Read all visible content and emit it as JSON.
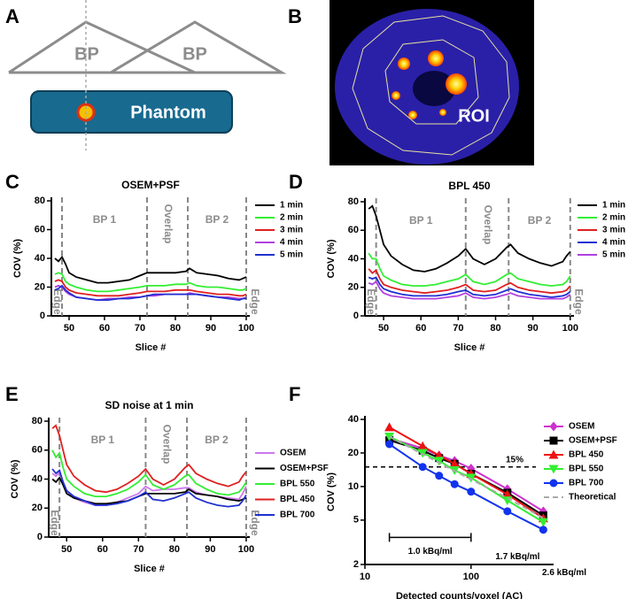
{
  "diagram_a": {
    "label": "A",
    "beds": [
      "BP",
      "BP"
    ],
    "phantom": "Phantom"
  },
  "image_b": {
    "label": "B",
    "roi_label": "ROI"
  },
  "chart_data": [
    {
      "type": "line",
      "panel": "C",
      "title": "OSEM+PSF",
      "xlabel": "Slice #",
      "ylabel": "COV (%)",
      "x": [
        46,
        47,
        48,
        49,
        50,
        52,
        55,
        58,
        61,
        64,
        67,
        70,
        72,
        74,
        77,
        80,
        83,
        84,
        86,
        89,
        92,
        95,
        98,
        99,
        100
      ],
      "series": [
        {
          "name": "1 min",
          "color": "#000000",
          "values": [
            40,
            38,
            41,
            36,
            30,
            27,
            25,
            23,
            23,
            24,
            25,
            28,
            30,
            30,
            30,
            30,
            31,
            33,
            30,
            29,
            28,
            26,
            25,
            26,
            27
          ]
        },
        {
          "name": "2 min",
          "color": "#33ee33",
          "values": [
            29,
            30,
            29,
            24,
            22,
            20,
            18,
            17,
            17,
            18,
            19,
            20,
            21,
            21,
            21,
            22,
            22,
            23,
            21,
            20,
            20,
            19,
            18,
            18,
            19
          ]
        },
        {
          "name": "3 min",
          "color": "#e02020",
          "values": [
            24,
            25,
            24,
            20,
            18,
            16,
            15,
            14,
            14,
            14,
            15,
            16,
            17,
            17,
            17,
            18,
            18,
            18,
            17,
            16,
            15,
            15,
            14,
            14,
            15
          ]
        },
        {
          "name": "4 min",
          "color": "#b040e0",
          "values": [
            20,
            21,
            20,
            17,
            15,
            13,
            12,
            11,
            12,
            12,
            13,
            13,
            14,
            14,
            15,
            15,
            15,
            16,
            15,
            14,
            13,
            13,
            12,
            12,
            13
          ]
        },
        {
          "name": "5 min",
          "color": "#2030d0",
          "values": [
            18,
            19,
            21,
            18,
            16,
            13,
            12,
            11,
            11,
            12,
            12,
            13,
            14,
            15,
            15,
            15,
            15,
            15,
            15,
            14,
            13,
            12,
            11,
            12,
            12
          ]
        }
      ],
      "xlim": [
        45,
        101
      ],
      "ylim": [
        0,
        80
      ],
      "xticks": [
        50,
        60,
        70,
        80,
        90,
        100
      ],
      "yticks": [
        0,
        20,
        40,
        60,
        80
      ],
      "reference_lines": [
        48,
        72,
        83.5,
        100
      ],
      "annotations": [
        "BP 1",
        "Overlap",
        "BP 2",
        "Edge",
        "Edge"
      ]
    },
    {
      "type": "line",
      "panel": "D",
      "title": "BPL 450",
      "xlabel": "Slice #",
      "ylabel": "COV (%)",
      "x": [
        46,
        47,
        48,
        49,
        50,
        52,
        55,
        58,
        61,
        64,
        67,
        70,
        72,
        74,
        77,
        80,
        83,
        84,
        86,
        89,
        92,
        95,
        98,
        99,
        100
      ],
      "series": [
        {
          "name": "1 min",
          "color": "#000000",
          "values": [
            75,
            77,
            70,
            60,
            50,
            42,
            36,
            32,
            31,
            33,
            37,
            42,
            47,
            40,
            36,
            40,
            48,
            50,
            44,
            40,
            37,
            35,
            38,
            42,
            45
          ]
        },
        {
          "name": "2 min",
          "color": "#33ee33",
          "values": [
            44,
            40,
            40,
            33,
            28,
            25,
            22,
            21,
            21,
            22,
            24,
            26,
            29,
            24,
            22,
            24,
            29,
            30,
            26,
            24,
            22,
            21,
            22,
            24,
            28
          ]
        },
        {
          "name": "3 min",
          "color": "#e02020",
          "values": [
            33,
            30,
            32,
            26,
            22,
            20,
            18,
            17,
            16,
            17,
            18,
            20,
            22,
            18,
            17,
            18,
            22,
            23,
            20,
            18,
            17,
            16,
            17,
            18,
            21
          ]
        },
        {
          "name": "4 min",
          "color": "#2030d0",
          "values": [
            27,
            26,
            27,
            22,
            19,
            17,
            15,
            14,
            14,
            14,
            15,
            17,
            18,
            15,
            14,
            15,
            18,
            19,
            17,
            15,
            14,
            13,
            14,
            15,
            17
          ]
        },
        {
          "name": "5 min",
          "color": "#b040e0",
          "values": [
            23,
            22,
            24,
            19,
            16,
            14,
            13,
            12,
            12,
            12,
            13,
            14,
            16,
            13,
            12,
            13,
            15,
            16,
            14,
            13,
            12,
            12,
            12,
            13,
            15
          ]
        }
      ],
      "xlim": [
        45,
        101
      ],
      "ylim": [
        0,
        80
      ],
      "xticks": [
        50,
        60,
        70,
        80,
        90,
        100
      ],
      "yticks": [
        0,
        20,
        40,
        60,
        80
      ],
      "reference_lines": [
        48,
        72,
        83.5,
        100
      ],
      "annotations": [
        "BP 1",
        "Overlap",
        "BP 2",
        "Edge",
        "Edge"
      ]
    },
    {
      "type": "line",
      "panel": "E",
      "title": "SD noise at 1 min",
      "xlabel": "Slice #",
      "ylabel": "COV (%)",
      "x": [
        46,
        47,
        48,
        49,
        50,
        52,
        55,
        58,
        61,
        64,
        67,
        70,
        72,
        74,
        77,
        80,
        83,
        84,
        86,
        89,
        92,
        95,
        98,
        99,
        100
      ],
      "series": [
        {
          "name": "OSEM",
          "color": "#cc77ee",
          "values": [
            44,
            42,
            45,
            38,
            32,
            27,
            24,
            22,
            22,
            24,
            27,
            30,
            35,
            32,
            33,
            33,
            34,
            34,
            31,
            29,
            28,
            27,
            26,
            30,
            35
          ]
        },
        {
          "name": "OSEM+PSF",
          "color": "#000000",
          "values": [
            40,
            38,
            41,
            36,
            30,
            27,
            25,
            23,
            23,
            24,
            25,
            28,
            30,
            30,
            30,
            30,
            31,
            33,
            30,
            29,
            28,
            26,
            25,
            26,
            27
          ]
        },
        {
          "name": "BPL 550",
          "color": "#33ee33",
          "values": [
            60,
            55,
            58,
            48,
            40,
            35,
            30,
            28,
            28,
            30,
            33,
            38,
            43,
            36,
            33,
            36,
            42,
            43,
            37,
            33,
            30,
            29,
            31,
            34,
            38
          ]
        },
        {
          "name": "BPL 450",
          "color": "#e02020",
          "values": [
            75,
            77,
            70,
            60,
            50,
            42,
            36,
            32,
            31,
            33,
            37,
            42,
            47,
            40,
            36,
            40,
            48,
            50,
            44,
            40,
            37,
            35,
            38,
            42,
            45
          ]
        },
        {
          "name": "BPL 700",
          "color": "#2030d0",
          "values": [
            47,
            44,
            46,
            38,
            32,
            28,
            25,
            22,
            22,
            23,
            25,
            28,
            31,
            26,
            25,
            27,
            30,
            31,
            27,
            24,
            22,
            21,
            22,
            25,
            29
          ]
        }
      ],
      "xlim": [
        45,
        101
      ],
      "ylim": [
        0,
        80
      ],
      "xticks": [
        50,
        60,
        70,
        80,
        90,
        100
      ],
      "yticks": [
        0,
        20,
        40,
        60,
        80
      ],
      "reference_lines": [
        48,
        72,
        83.5,
        100
      ],
      "annotations": [
        "BP 1",
        "Overlap",
        "BP 2",
        "Edge",
        "Edge"
      ]
    },
    {
      "type": "scatter_line",
      "panel": "F",
      "xlabel": "Detected counts/voxel (AC)",
      "ylabel": "COV (%)",
      "x": [
        17,
        35,
        50,
        70,
        100,
        220,
        480
      ],
      "series": [
        {
          "name": "OSEM",
          "color": "#cc33cc",
          "marker": "diamond",
          "values": [
            27,
            22,
            19,
            17,
            14.5,
            9.5,
            6
          ]
        },
        {
          "name": "OSEM+PSF",
          "color": "#000000",
          "marker": "square",
          "values": [
            26,
            21,
            18,
            16,
            13,
            8.8,
            5.5
          ]
        },
        {
          "name": "BPL 450",
          "color": "#ee1111",
          "marker": "triangle",
          "values": [
            34,
            23,
            19,
            16,
            13,
            8.5,
            5.2
          ]
        },
        {
          "name": "BPL 550",
          "color": "#33ee33",
          "marker": "triangle-down",
          "values": [
            28,
            20,
            17,
            14,
            12,
            7.5,
            4.8
          ]
        },
        {
          "name": "BPL 700",
          "color": "#1133ee",
          "marker": "circle",
          "values": [
            24,
            15,
            12.5,
            10.5,
            9,
            6,
            4.1
          ]
        },
        {
          "name": "Theoretical",
          "color": "#aaaaaa",
          "marker": "none",
          "linestyle": "dashed",
          "values": [
            28,
            19.5,
            16.3,
            13.8,
            11.6,
            7.9,
            5.2
          ]
        }
      ],
      "xlim": [
        10,
        600
      ],
      "ylim": [
        2,
        40
      ],
      "xticks": [
        10,
        100
      ],
      "yticks": [
        2,
        5,
        10,
        20,
        40
      ],
      "xlog": true,
      "ylog": true,
      "hline": {
        "value": 15,
        "label": "15%"
      },
      "bracket": {
        "x": [
          17,
          100
        ],
        "y": 3.5
      },
      "annotations": [
        "1.0 kBq/ml",
        "1.7 kBq/ml",
        "2.6 kBq/ml"
      ]
    }
  ]
}
